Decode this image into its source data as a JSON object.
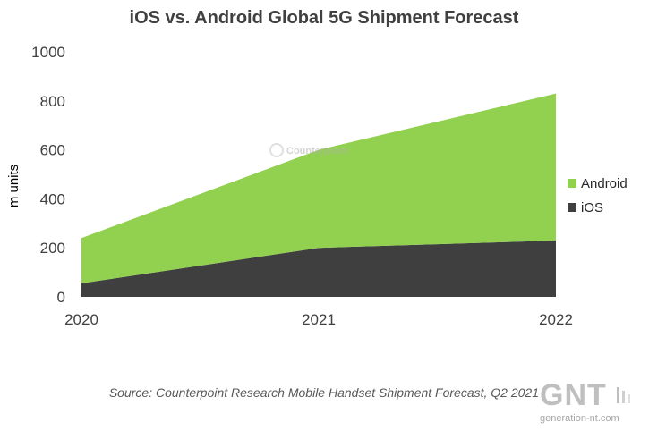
{
  "chart_data": {
    "type": "area",
    "stacked": true,
    "title": "iOS vs. Android Global 5G Shipment Forecast",
    "xlabel": "",
    "ylabel": "m units",
    "categories": [
      "2020",
      "2021",
      "2022"
    ],
    "ylim": [
      0,
      1000
    ],
    "yticks": [
      0,
      200,
      400,
      600,
      800,
      1000
    ],
    "series": [
      {
        "name": "iOS",
        "values": [
          55,
          200,
          230
        ],
        "color": "#3f3f3f"
      },
      {
        "name": "Android",
        "values": [
          185,
          400,
          600
        ],
        "color": "#92d050"
      }
    ],
    "legend_position": "right",
    "grid": false
  },
  "source_note": "Source: Counterpoint Research Mobile Handset Shipment Forecast, Q2 2021",
  "watermarks": {
    "counterpoint": "Counterpoint",
    "gnt_logo": "GNT",
    "gnt_site": "generation-nt.com"
  }
}
